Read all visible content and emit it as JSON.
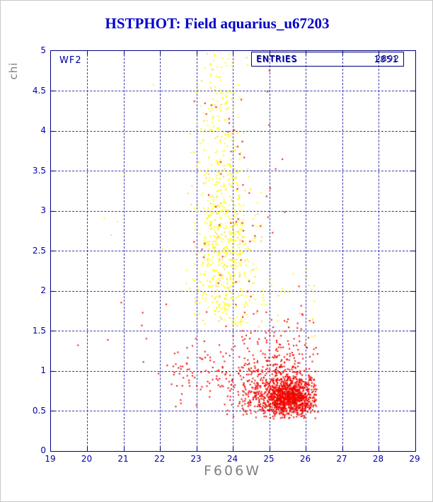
{
  "page": {
    "title": "HSTPHOT: Field aquarius_u67203"
  },
  "labels": {
    "detector": "WF2",
    "entries_label": "ENTRIES",
    "entries_value_1": "2892",
    "entries_value_2": "1851"
  },
  "chart_data": {
    "type": "scatter",
    "title": "HSTPHOT: Field aquarius_u67203",
    "xlabel": "F606W",
    "ylabel": "chi",
    "xlim": [
      19,
      29
    ],
    "ylim": [
      0,
      5
    ],
    "xticks": [
      19,
      20,
      21,
      22,
      23,
      24,
      25,
      26,
      27,
      28,
      29
    ],
    "yticks": [
      0,
      0.5,
      1,
      1.5,
      2,
      2.5,
      3,
      3.5,
      4,
      4.5,
      5
    ],
    "grid": "dashed",
    "grid_color": "#3a3aad",
    "axis_color": "#000080",
    "tick_label_color": "#0000aa",
    "label_color": "#808080",
    "title_color": "#0000cc",
    "legend": "none",
    "annotations": [
      {
        "text": "WF2",
        "position": "top-left-inside"
      },
      {
        "text": "ENTRIES",
        "values": [
          "2892",
          "1851"
        ],
        "position": "top-right-inside-box"
      }
    ],
    "series": [
      {
        "name": "high-chi-yellow-points",
        "color": "#ffff00",
        "alt_color": "#ffd24d",
        "alt_prob": 0.18,
        "entries": 1851,
        "description": "vertical cloud centered near F606W 23.7, chi 1.6 to 5.0",
        "clusters": [
          {
            "n": 500,
            "x": {
              "d": "n",
              "mu": 23.75,
              "s": 0.42,
              "min": 22.6,
              "max": 25.05
            },
            "y": {
              "d": "n",
              "mu": 2.6,
              "s": 0.58,
              "min": 1.6,
              "max": 4.05
            }
          },
          {
            "n": 150,
            "x": {
              "d": "n",
              "mu": 23.6,
              "s": 0.34,
              "min": 22.8,
              "max": 24.6
            },
            "y": {
              "d": "u",
              "min": 3.3,
              "max": 5.0
            }
          },
          {
            "n": 70,
            "x": {
              "d": "n",
              "mu": 23.9,
              "s": 0.6,
              "min": 22.5,
              "max": 25.3
            },
            "y": {
              "d": "u",
              "min": 1.55,
              "max": 2.15
            }
          },
          {
            "n": 22,
            "x": {
              "d": "u",
              "min": 25.2,
              "max": 26.25
            },
            "y": {
              "d": "u",
              "min": 1.35,
              "max": 2.3
            }
          },
          {
            "n": 6,
            "x": {
              "d": "u",
              "min": 20.3,
              "max": 22.4
            },
            "y": {
              "d": "u",
              "min": 1.5,
              "max": 4.6
            }
          }
        ]
      },
      {
        "name": "low-chi-red-points",
        "color": "#ff0000",
        "alt_color": "#b22000",
        "alt_prob": 0.18,
        "entries": 2892,
        "description": "dense clump near F606W 25.5, chi 0.4 to 1.1, with sparse tail",
        "clusters": [
          {
            "n": 950,
            "x": {
              "d": "n",
              "mu": 25.55,
              "s": 0.36,
              "min": 24.3,
              "max": 26.33
            },
            "y": {
              "d": "n",
              "mu": 0.66,
              "s": 0.11,
              "min": 0.4,
              "max": 1.05
            }
          },
          {
            "n": 420,
            "x": {
              "d": "n",
              "mu": 25.15,
              "s": 0.62,
              "min": 23.6,
              "max": 26.33
            },
            "y": {
              "d": "n",
              "mu": 0.78,
              "s": 0.2,
              "min": 0.4,
              "max": 1.35
            }
          },
          {
            "n": 210,
            "x": {
              "d": "u",
              "min": 22.2,
              "max": 26.3
            },
            "y": {
              "d": "n",
              "mu": 0.95,
              "s": 0.28,
              "min": 0.45,
              "max": 1.7
            }
          },
          {
            "n": 55,
            "x": {
              "d": "n",
              "mu": 24.2,
              "s": 0.85,
              "min": 22.4,
              "max": 26.3
            },
            "y": {
              "d": "u",
              "min": 1.7,
              "max": 4.85
            }
          },
          {
            "n": 60,
            "x": {
              "d": "n",
              "mu": 25.1,
              "s": 0.6,
              "min": 23.8,
              "max": 26.3
            },
            "y": {
              "d": "u",
              "min": 1.05,
              "max": 1.75
            }
          },
          {
            "n": 10,
            "x": {
              "d": "u",
              "min": 19.55,
              "max": 22.3
            },
            "y": {
              "d": "u",
              "min": 0.8,
              "max": 2.1
            }
          },
          {
            "n": 5,
            "x": {
              "d": "u",
              "min": 22.9,
              "max": 24.4
            },
            "y": {
              "d": "u",
              "min": 4.2,
              "max": 4.95
            }
          }
        ]
      }
    ]
  }
}
